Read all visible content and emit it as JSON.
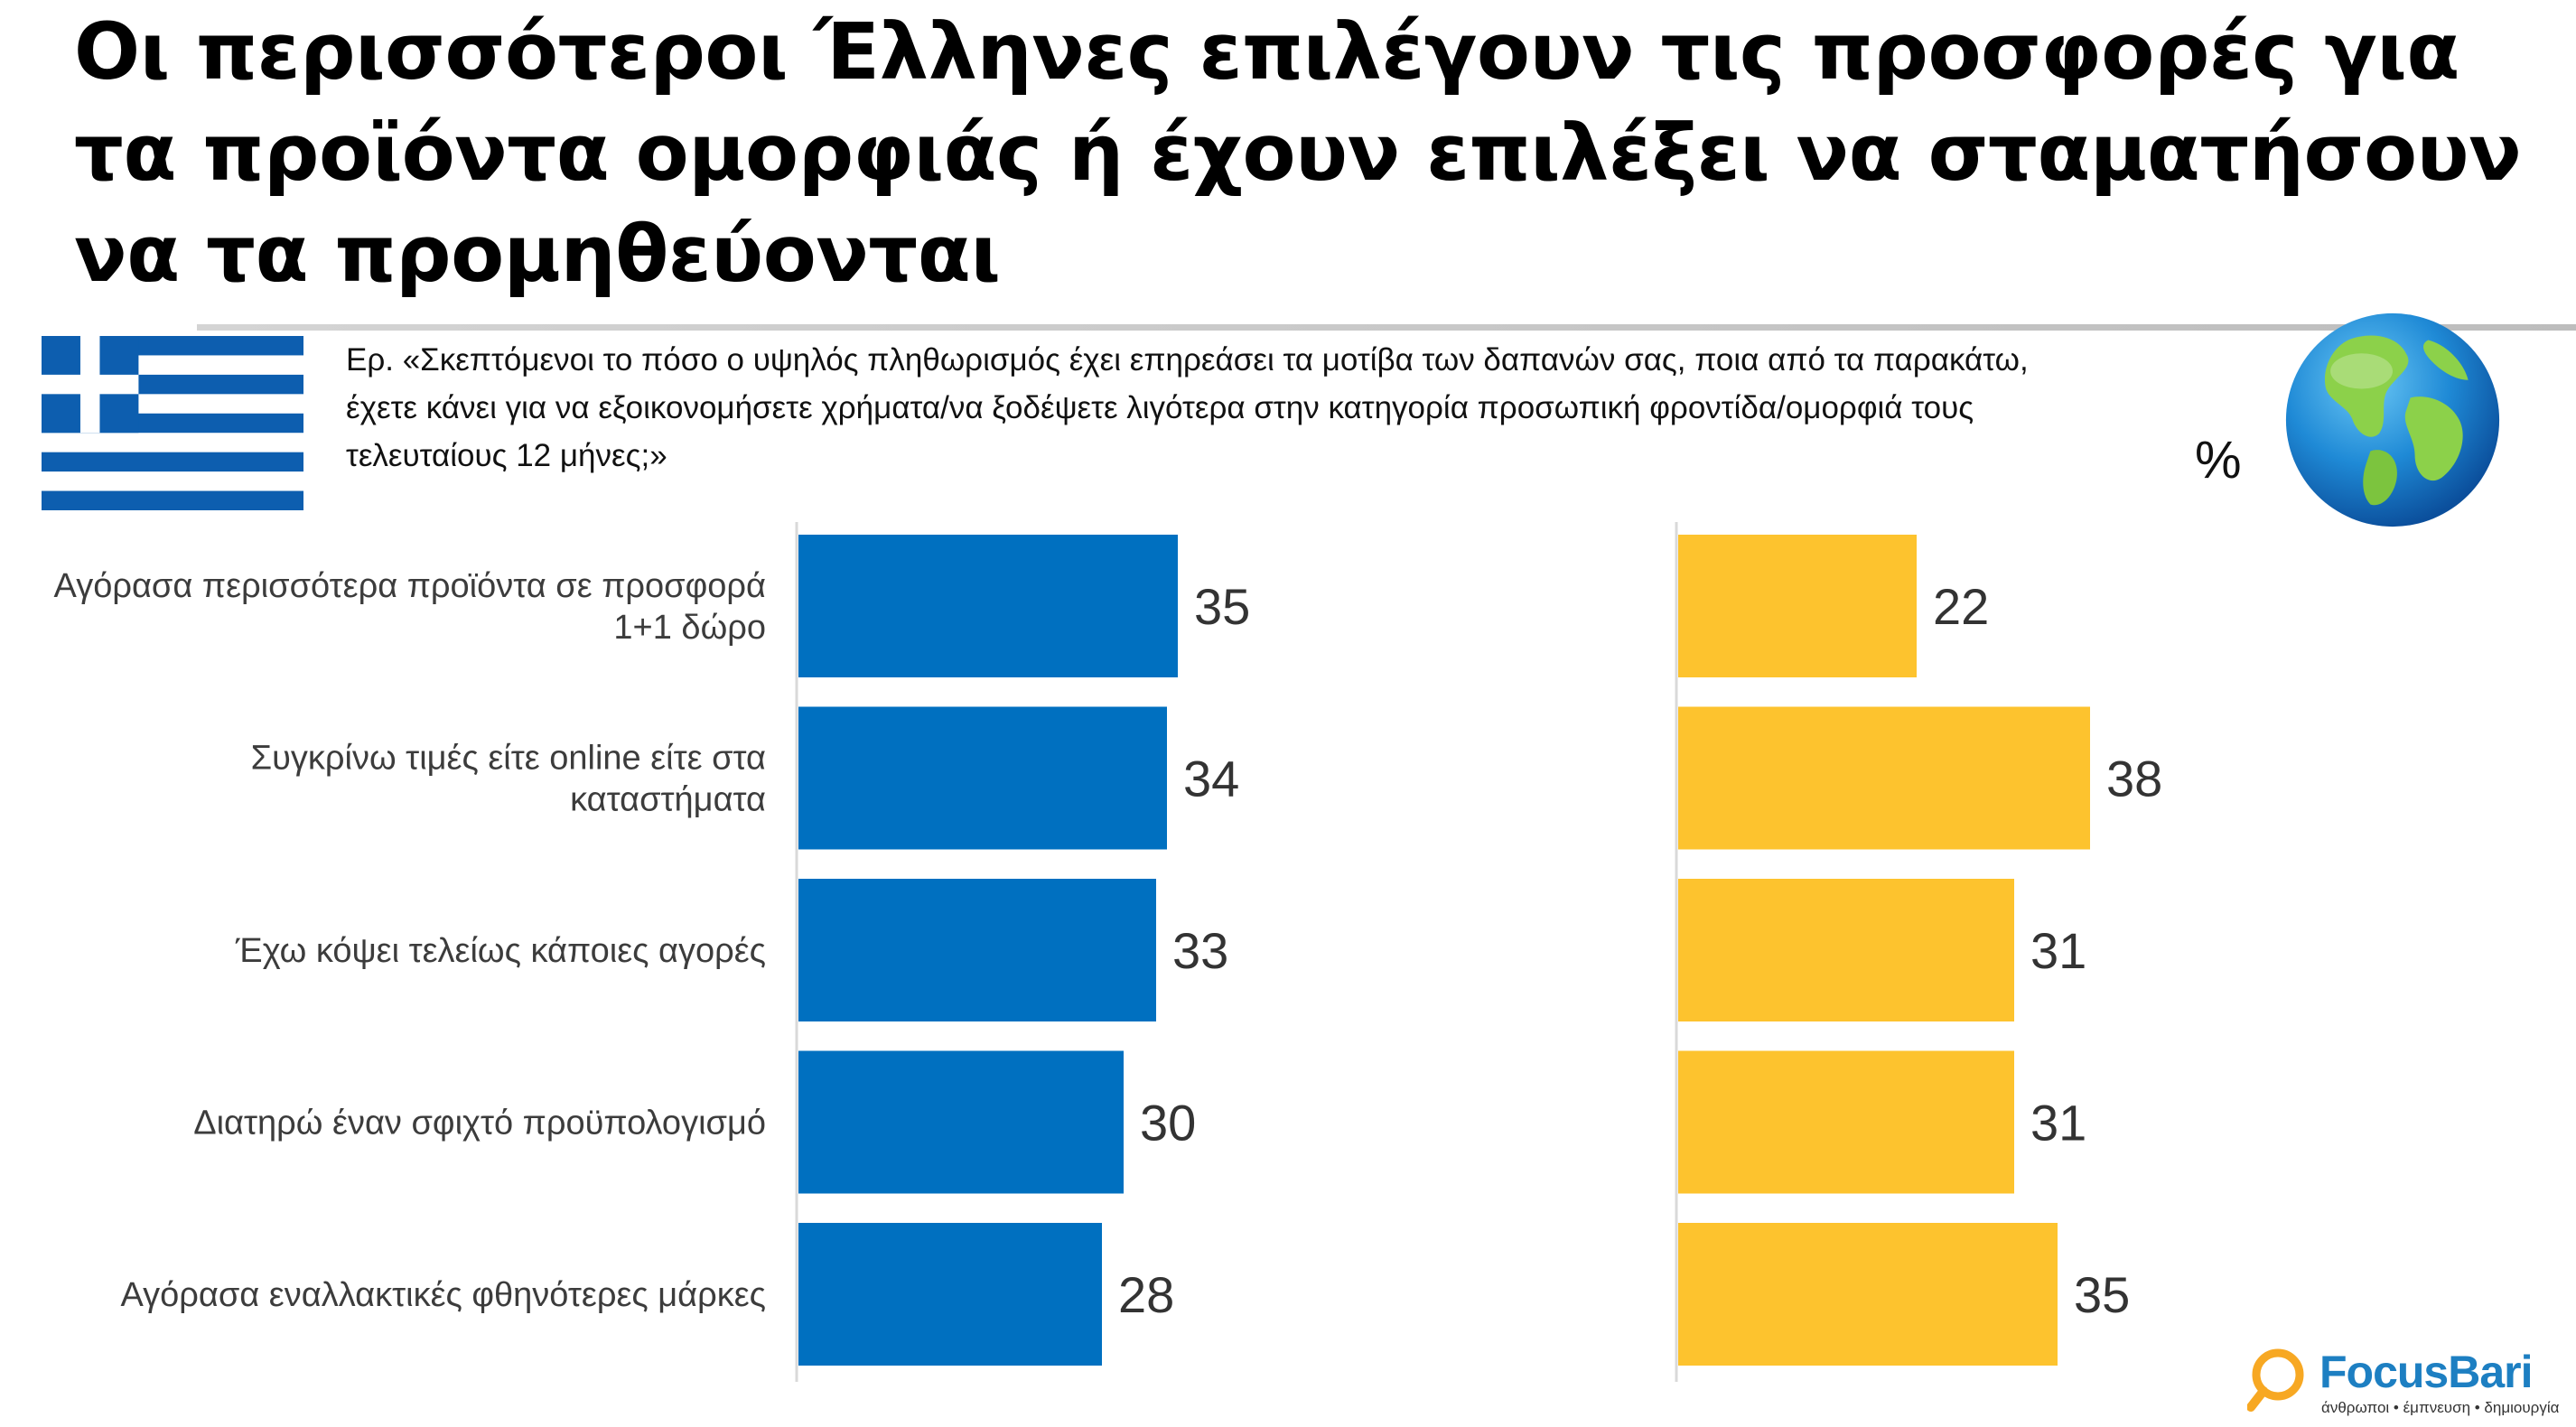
{
  "title": "Οι περισσότεροι Έλληνες επιλέγουν τις προσφορές για τα προϊόντα ομορφιάς ή έχουν επιλέξει να σταματήσουν να τα προμηθεύονται",
  "question": "Ερ. «Σκεπτόμενοι το πόσο ο υψηλός πληθωρισμός έχει επηρεάσει τα μοτίβα των δαπανών σας, ποια από τα παρακάτω, έχετε κάνει για να εξοικονομήσετε χρήματα/να ξοδέψετε λιγότερα στην κατηγορία προσωπική φροντίδα/ομορφιά τους τελευταίους 12 μήνες;»",
  "unit": "%",
  "icons": {
    "left": "greek-flag",
    "right": "globe"
  },
  "colors": {
    "greece": "#0070c0",
    "global": "#fdc32e"
  },
  "brand": {
    "name_part1": "Focus",
    "name_part2": "Bari",
    "tagline": "άνθρωποι • έμπνευση • δημιουργία"
  },
  "chart_data": {
    "type": "bar",
    "orientation": "horizontal",
    "categories": [
      "Αγόρασα περισσότερα προϊόντα σε προσφορά 1+1 δώρο",
      "Συγκρίνω τιμές είτε online είτε στα καταστήματα",
      "Έχω κόψει τελείως κάποιες αγορές",
      "Διατηρώ έναν σφιχτό προϋπολογισμό",
      "Αγόρασα εναλλακτικές φθηνότερες μάρκες"
    ],
    "category_lines": [
      [
        "Αγόρασα περισσότερα προϊόντα σε προσφορά",
        "1+1 δώρο"
      ],
      [
        "Συγκρίνω τιμές είτε online είτε στα",
        "καταστήματα"
      ],
      [
        "Έχω κόψει τελείως κάποιες αγορές"
      ],
      [
        "Διατηρώ έναν σφιχτό προϋπολογισμό"
      ],
      [
        "Αγόρασα εναλλακτικές φθηνότερες μάρκες"
      ]
    ],
    "series": [
      {
        "values": [
          35,
          34,
          33,
          30,
          28
        ],
        "color": "#0070c0"
      },
      {
        "values": [
          22,
          38,
          31,
          31,
          35
        ],
        "color": "#fdc32e"
      }
    ],
    "data_labels": true,
    "grid": false
  }
}
